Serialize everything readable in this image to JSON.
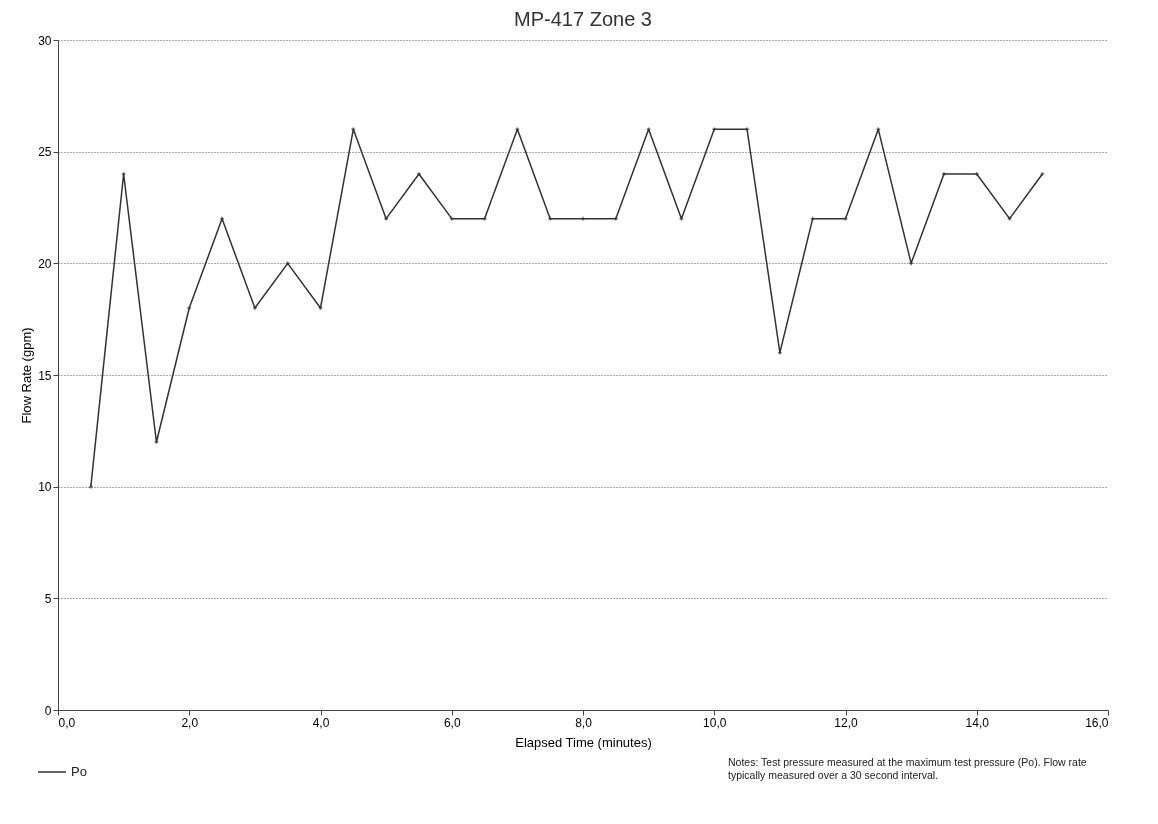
{
  "chart_data": {
    "type": "line",
    "title": "MP-417 Zone 3",
    "xlabel": "Elapsed Time (minutes)",
    "ylabel": "Flow Rate (gpm)",
    "x": [
      0.5,
      1.0,
      1.5,
      2.0,
      2.5,
      3.0,
      3.5,
      4.0,
      4.5,
      5.0,
      5.5,
      6.0,
      6.5,
      7.0,
      7.5,
      8.0,
      8.5,
      9.0,
      9.5,
      10.0,
      10.5,
      11.0,
      11.5,
      12.0,
      12.5,
      13.0,
      13.5,
      14.0,
      14.5,
      15.0
    ],
    "series": [
      {
        "name": "Po",
        "color": "#333333",
        "values": [
          10,
          24,
          12,
          18,
          22,
          18,
          20,
          18,
          26,
          22,
          24,
          22,
          22,
          26,
          22,
          22,
          22,
          26,
          22,
          26,
          26,
          16,
          22,
          22,
          26,
          20,
          24,
          24,
          22,
          24
        ]
      }
    ],
    "xlim": [
      0,
      16
    ],
    "xticks": [
      {
        "value": 0,
        "label": "0,0"
      },
      {
        "value": 2,
        "label": "2,0"
      },
      {
        "value": 4,
        "label": "4,0"
      },
      {
        "value": 6,
        "label": "6,0"
      },
      {
        "value": 8,
        "label": "8,0"
      },
      {
        "value": 10,
        "label": "10,0"
      },
      {
        "value": 12,
        "label": "12,0"
      },
      {
        "value": 14,
        "label": "14,0"
      },
      {
        "value": 16,
        "label": "16,0"
      }
    ],
    "ylim": [
      0,
      30
    ],
    "yticks": [
      0,
      5,
      10,
      15,
      20,
      25,
      30
    ],
    "grid": "y",
    "legend": "bottom left",
    "marker": "cross",
    "line_style": "solid",
    "annotations": [
      "Notes: Test pressure measured at the maximum test pressure (Po). Flow rate\ntypically measured over a 30 second interval."
    ]
  }
}
